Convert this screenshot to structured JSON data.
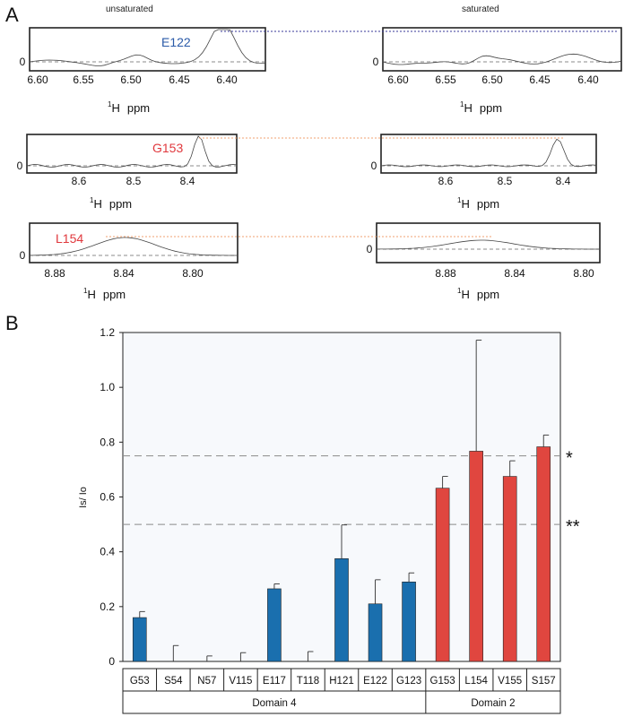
{
  "panel_a": {
    "label": "A",
    "col_unsat": "unsaturated",
    "col_sat": "saturated",
    "axis_h": "H",
    "axis_sup": "1",
    "axis_unit": "ppm",
    "zero_label": "0",
    "rows": [
      {
        "residue": "E122",
        "color": "#2a5aa8",
        "link_color": "#3a3a9a",
        "ticks": [
          "6.60",
          "6.55",
          "6.50",
          "6.45",
          "6.40"
        ],
        "unsat_ticks": [
          "6.60",
          "6.55",
          "6.50",
          "6.45",
          "6.40"
        ]
      },
      {
        "residue": "G153",
        "color": "#e0383d",
        "link_color": "#f0a070",
        "unsat_ticks": [
          "8.6",
          "8.5",
          "8.4"
        ],
        "ticks": [
          "8.6",
          "8.5",
          "8.4"
        ]
      },
      {
        "residue": "L154",
        "color": "#e0383d",
        "link_color": "#f0a070",
        "unsat_ticks": [
          "8.88",
          "8.84",
          "8.80"
        ],
        "ticks": [
          "8.88",
          "8.84",
          "8.80"
        ]
      }
    ]
  },
  "panel_b": {
    "label": "B",
    "significance": [
      {
        "value": 0.75,
        "label": "*"
      },
      {
        "value": 0.5,
        "label": "**"
      }
    ],
    "groups": [
      {
        "label": "Domain 4",
        "span": 9
      },
      {
        "label": "Domain 2",
        "span": 4
      }
    ]
  },
  "colors": {
    "domain4": "#1a6fae",
    "domain2": "#e0463f",
    "plot_bg": "#f7f9fc"
  },
  "chart_data": {
    "type": "bar",
    "ylabel": "Is/ Io",
    "ylim": [
      0,
      1.2
    ],
    "yticks": [
      "0",
      "0.2",
      "0.4",
      "0.6",
      "0.8",
      "1.0",
      "1.2"
    ],
    "categories": [
      "G53",
      "S54",
      "N57",
      "V115",
      "E117",
      "T118",
      "H121",
      "E122",
      "G123",
      "G153",
      "L154",
      "V155",
      "S157"
    ],
    "values": [
      0.16,
      0.0,
      0.0,
      0.0,
      0.265,
      0.0,
      0.375,
      0.21,
      0.29,
      0.632,
      0.767,
      0.675,
      0.783
    ],
    "errors": [
      0.022,
      0.058,
      0.02,
      0.032,
      0.018,
      0.036,
      0.123,
      0.088,
      0.033,
      0.043,
      0.405,
      0.057,
      0.043
    ],
    "group": [
      "Domain 4",
      "Domain 4",
      "Domain 4",
      "Domain 4",
      "Domain 4",
      "Domain 4",
      "Domain 4",
      "Domain 4",
      "Domain 4",
      "Domain 2",
      "Domain 2",
      "Domain 2",
      "Domain 2"
    ],
    "grid": false
  }
}
